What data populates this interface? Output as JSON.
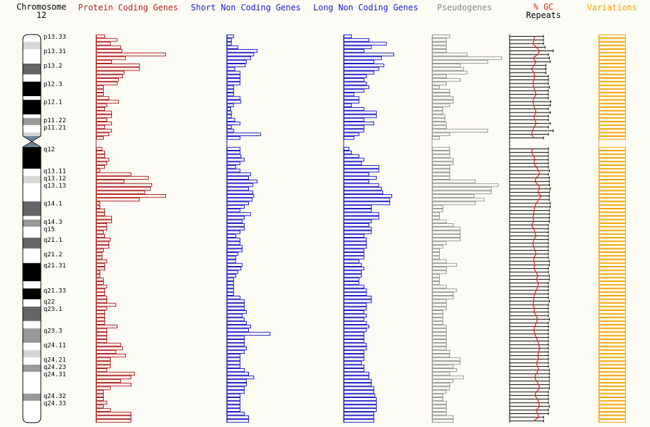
{
  "headers": {
    "chromosome": "Chromosome",
    "chromosome_number": "12",
    "protein": "Protein Coding Genes",
    "short_nc": "Short Non Coding Genes",
    "long_nc": "Long Non Coding Genes",
    "pseudo": "Pseudogenes",
    "gc": "% GC",
    "repeats": "Repeats",
    "variations": "Variations"
  },
  "colors": {
    "protein": "#b22222",
    "short_nc": "#1a1acd",
    "long_nc": "#1a1acd",
    "pseudo": "#999999",
    "gc": "#e02020",
    "repeats": "#000000",
    "variations": "#f5a300",
    "background": "#fcfbf4"
  },
  "chart_data": {
    "type": "bar",
    "bins": 107,
    "centromere_after_bin": 28,
    "gap_bins": [
      29,
      30
    ],
    "bands": [
      {
        "name": "p13.33",
        "start": 0,
        "end": 2,
        "stain": "white"
      },
      {
        "name": "",
        "start": 2,
        "end": 4,
        "stain": "light"
      },
      {
        "name": "p13.31",
        "start": 4,
        "end": 8,
        "stain": "white"
      },
      {
        "name": "p13.2",
        "start": 8,
        "end": 11,
        "stain": "dark"
      },
      {
        "name": "",
        "start": 11,
        "end": 13,
        "stain": "white"
      },
      {
        "name": "p12.3",
        "start": 13,
        "end": 17,
        "stain": "black"
      },
      {
        "name": "",
        "start": 17,
        "end": 18,
        "stain": "white"
      },
      {
        "name": "p12.1",
        "start": 18,
        "end": 22,
        "stain": "black"
      },
      {
        "name": "",
        "start": 22,
        "end": 23,
        "stain": "white"
      },
      {
        "name": "p11.22",
        "start": 23,
        "end": 25,
        "stain": "mid"
      },
      {
        "name": "p11.21",
        "start": 25,
        "end": 27,
        "stain": "white"
      },
      {
        "name": "",
        "start": 27,
        "end": 28,
        "stain": "light"
      },
      {
        "name": "q12",
        "start": 31,
        "end": 37,
        "stain": "black"
      },
      {
        "name": "q13.11",
        "start": 37,
        "end": 39,
        "stain": "white"
      },
      {
        "name": "q13.12",
        "start": 39,
        "end": 41,
        "stain": "light"
      },
      {
        "name": "q13.13",
        "start": 41,
        "end": 43,
        "stain": "white"
      },
      {
        "name": "",
        "start": 43,
        "end": 46,
        "stain": "white"
      },
      {
        "name": "q14.1",
        "start": 46,
        "end": 50,
        "stain": "dark"
      },
      {
        "name": "",
        "start": 50,
        "end": 51,
        "stain": "white"
      },
      {
        "name": "q14.3",
        "start": 51,
        "end": 53,
        "stain": "mid"
      },
      {
        "name": "q15",
        "start": 53,
        "end": 56,
        "stain": "white"
      },
      {
        "name": "q21.1",
        "start": 56,
        "end": 59,
        "stain": "dark"
      },
      {
        "name": "",
        "start": 59,
        "end": 60,
        "stain": "white"
      },
      {
        "name": "q21.2",
        "start": 60,
        "end": 63,
        "stain": "white"
      },
      {
        "name": "q21.31",
        "start": 63,
        "end": 68,
        "stain": "black"
      },
      {
        "name": "",
        "start": 68,
        "end": 70,
        "stain": "white"
      },
      {
        "name": "q21.33",
        "start": 70,
        "end": 73,
        "stain": "black"
      },
      {
        "name": "q22",
        "start": 73,
        "end": 75,
        "stain": "white"
      },
      {
        "name": "q23.1",
        "start": 75,
        "end": 79,
        "stain": "dark"
      },
      {
        "name": "",
        "start": 79,
        "end": 81,
        "stain": "white"
      },
      {
        "name": "q23.3",
        "start": 81,
        "end": 85,
        "stain": "mid"
      },
      {
        "name": "q24.11",
        "start": 85,
        "end": 87,
        "stain": "white"
      },
      {
        "name": "",
        "start": 87,
        "end": 89,
        "stain": "light"
      },
      {
        "name": "q24.21",
        "start": 89,
        "end": 91,
        "stain": "white"
      },
      {
        "name": "q24.23",
        "start": 91,
        "end": 93,
        "stain": "mid"
      },
      {
        "name": "q24.31",
        "start": 93,
        "end": 97,
        "stain": "white"
      },
      {
        "name": "",
        "start": 97,
        "end": 99,
        "stain": "white"
      },
      {
        "name": "q24.32",
        "start": 99,
        "end": 101,
        "stain": "mid"
      },
      {
        "name": "q24.33",
        "start": 101,
        "end": 107,
        "stain": "white"
      }
    ],
    "series": [
      {
        "key": "protein",
        "type": "bar",
        "max": 100,
        "values": [
          12,
          30,
          20,
          35,
          37,
          100,
          42,
          22,
          62,
          62,
          40,
          38,
          32,
          30,
          10,
          10,
          10,
          18,
          32,
          15,
          12,
          22,
          22,
          15,
          22,
          12,
          22,
          18,
          10,
          0,
          0,
          8,
          12,
          12,
          18,
          15,
          12,
          5,
          50,
          75,
          40,
          80,
          78,
          70,
          100,
          62,
          5,
          5,
          12,
          12,
          22,
          22,
          15,
          15,
          10,
          12,
          20,
          18,
          18,
          10,
          8,
          8,
          15,
          12,
          12,
          5,
          5,
          10,
          10,
          15,
          12,
          12,
          15,
          15,
          28,
          15,
          12,
          12,
          12,
          12,
          30,
          15,
          15,
          15,
          15,
          35,
          38,
          28,
          42,
          20,
          20,
          20,
          15,
          55,
          50,
          35,
          50,
          20,
          10,
          10,
          10,
          15,
          10,
          20,
          50,
          50,
          50
        ]
      },
      {
        "key": "short_nc",
        "type": "bar",
        "max": 100,
        "values": [
          15,
          10,
          10,
          25,
          70,
          62,
          55,
          45,
          42,
          18,
          30,
          30,
          30,
          30,
          15,
          15,
          15,
          30,
          32,
          15,
          8,
          10,
          10,
          18,
          30,
          10,
          15,
          78,
          30,
          0,
          0,
          30,
          30,
          32,
          40,
          30,
          20,
          30,
          55,
          50,
          70,
          60,
          50,
          60,
          62,
          58,
          50,
          40,
          30,
          55,
          40,
          35,
          40,
          40,
          30,
          20,
          30,
          30,
          35,
          35,
          25,
          20,
          20,
          35,
          32,
          25,
          20,
          15,
          15,
          15,
          15,
          15,
          30,
          40,
          40,
          40,
          45,
          35,
          40,
          45,
          55,
          50,
          100,
          40,
          40,
          40,
          45,
          40,
          30,
          30,
          30,
          30,
          40,
          50,
          62,
          45,
          45,
          40,
          40,
          30,
          30,
          30,
          30,
          30,
          40,
          50,
          50
        ]
      },
      {
        "key": "long_nc",
        "type": "bar",
        "max": 100,
        "values": [
          15,
          50,
          85,
          55,
          40,
          100,
          75,
          60,
          80,
          70,
          60,
          45,
          40,
          45,
          50,
          40,
          20,
          30,
          30,
          15,
          40,
          65,
          65,
          40,
          60,
          40,
          40,
          30,
          20,
          0,
          0,
          10,
          15,
          30,
          40,
          35,
          70,
          70,
          50,
          65,
          50,
          70,
          75,
          78,
          96,
          92,
          92,
          55,
          55,
          70,
          70,
          55,
          50,
          55,
          55,
          40,
          45,
          45,
          45,
          40,
          40,
          40,
          30,
          35,
          40,
          35,
          35,
          30,
          30,
          40,
          45,
          45,
          55,
          55,
          45,
          45,
          40,
          45,
          40,
          45,
          50,
          45,
          40,
          40,
          40,
          45,
          45,
          40,
          40,
          40,
          35,
          40,
          40,
          50,
          50,
          55,
          55,
          60,
          60,
          62,
          65,
          65,
          65,
          65,
          60,
          60,
          60
        ]
      },
      {
        "key": "pseudo",
        "type": "bar",
        "max": 100,
        "values": [
          25,
          20,
          20,
          20,
          20,
          50,
          100,
          80,
          40,
          45,
          50,
          20,
          40,
          20,
          10,
          25,
          25,
          30,
          30,
          25,
          15,
          15,
          18,
          18,
          20,
          20,
          80,
          25,
          10,
          0,
          0,
          25,
          25,
          25,
          30,
          30,
          25,
          25,
          25,
          25,
          62,
          95,
          85,
          85,
          60,
          75,
          62,
          15,
          15,
          10,
          10,
          20,
          30,
          40,
          40,
          40,
          40,
          20,
          15,
          10,
          10,
          10,
          20,
          35,
          20,
          20,
          10,
          10,
          10,
          20,
          35,
          30,
          30,
          20,
          20,
          20,
          15,
          15,
          15,
          15,
          20,
          20,
          20,
          20,
          20,
          20,
          20,
          25,
          25,
          40,
          40,
          30,
          35,
          25,
          45,
          30,
          25,
          25,
          20,
          15,
          15,
          20,
          20,
          20,
          20,
          30,
          30
        ]
      },
      {
        "key": "repeats",
        "type": "errorbar",
        "max": 100,
        "values": [
          60,
          60,
          60,
          65,
          65,
          70,
          70,
          70,
          65,
          65,
          65,
          70,
          70,
          70,
          70,
          70,
          70,
          70,
          70,
          70,
          70,
          70,
          70,
          70,
          70,
          70,
          70,
          70,
          70,
          0,
          0,
          70,
          70,
          70,
          70,
          70,
          70,
          70,
          70,
          70,
          70,
          70,
          70,
          70,
          70,
          70,
          70,
          70,
          70,
          70,
          70,
          70,
          70,
          70,
          70,
          70,
          70,
          70,
          70,
          70,
          70,
          70,
          70,
          70,
          70,
          70,
          70,
          70,
          70,
          70,
          70,
          70,
          70,
          70,
          70,
          70,
          70,
          70,
          70,
          70,
          70,
          70,
          70,
          70,
          70,
          70,
          70,
          70,
          70,
          70,
          70,
          70,
          70,
          70,
          70,
          70,
          70,
          70,
          70,
          70,
          70,
          70,
          70,
          70,
          70,
          60,
          60
        ],
        "errors": [
          10,
          10,
          10,
          8,
          25,
          10,
          12,
          14,
          10,
          10,
          10,
          10,
          10,
          10,
          12,
          10,
          10,
          10,
          15,
          14,
          10,
          14,
          10,
          10,
          14,
          10,
          20,
          10,
          0,
          0,
          0,
          10,
          10,
          10,
          10,
          10,
          10,
          12,
          10,
          12,
          12,
          12,
          14,
          12,
          12,
          12,
          14,
          14,
          12,
          12,
          12,
          12,
          10,
          10,
          10,
          10,
          10,
          10,
          10,
          10,
          10,
          10,
          12,
          12,
          10,
          10,
          12,
          12,
          10,
          10,
          10,
          10,
          10,
          12,
          10,
          10,
          10,
          10,
          12,
          10,
          10,
          10,
          10,
          10,
          10,
          10,
          10,
          10,
          10,
          10,
          10,
          10,
          12,
          12,
          12,
          12,
          12,
          12,
          10,
          10,
          10,
          10,
          12,
          10,
          10,
          10,
          10
        ]
      },
      {
        "key": "gc",
        "type": "line",
        "max": 100,
        "values": [
          52,
          50,
          48,
          55,
          62,
          58,
          48,
          55,
          50,
          45,
          50,
          52,
          50,
          48,
          50,
          52,
          55,
          50,
          48,
          50,
          52,
          55,
          50,
          52,
          55,
          50,
          48,
          45,
          50,
          0,
          0,
          48,
          45,
          50,
          52,
          50,
          55,
          60,
          62,
          55,
          52,
          60,
          62,
          58,
          65,
          60,
          55,
          52,
          50,
          50,
          48,
          50,
          45,
          50,
          52,
          55,
          50,
          48,
          50,
          52,
          55,
          50,
          50,
          52,
          50,
          55,
          58,
          55,
          60,
          58,
          55,
          52,
          50,
          50,
          48,
          52,
          50,
          55,
          58,
          55,
          52,
          50,
          52,
          55,
          58,
          60,
          62,
          60,
          58,
          60,
          55,
          58,
          60,
          55,
          52,
          55,
          60,
          62,
          55,
          52,
          58,
          60,
          62,
          55,
          58,
          60,
          50
        ]
      },
      {
        "key": "variations",
        "type": "bar",
        "max": 100,
        "values": [
          95,
          95,
          95,
          95,
          95,
          95,
          95,
          95,
          95,
          95,
          95,
          95,
          95,
          95,
          95,
          95,
          95,
          95,
          95,
          95,
          95,
          95,
          95,
          95,
          95,
          95,
          95,
          95,
          95,
          0,
          0,
          95,
          95,
          95,
          95,
          95,
          95,
          95,
          95,
          95,
          95,
          95,
          95,
          95,
          95,
          95,
          95,
          95,
          95,
          95,
          95,
          95,
          95,
          95,
          95,
          95,
          95,
          95,
          95,
          95,
          95,
          95,
          95,
          95,
          95,
          95,
          95,
          95,
          95,
          95,
          95,
          95,
          95,
          95,
          95,
          95,
          95,
          95,
          95,
          95,
          95,
          95,
          95,
          95,
          95,
          95,
          95,
          95,
          95,
          95,
          95,
          95,
          95,
          95,
          95,
          95,
          95,
          95,
          95,
          95,
          95,
          95,
          95,
          95,
          95,
          95,
          95
        ]
      }
    ]
  }
}
